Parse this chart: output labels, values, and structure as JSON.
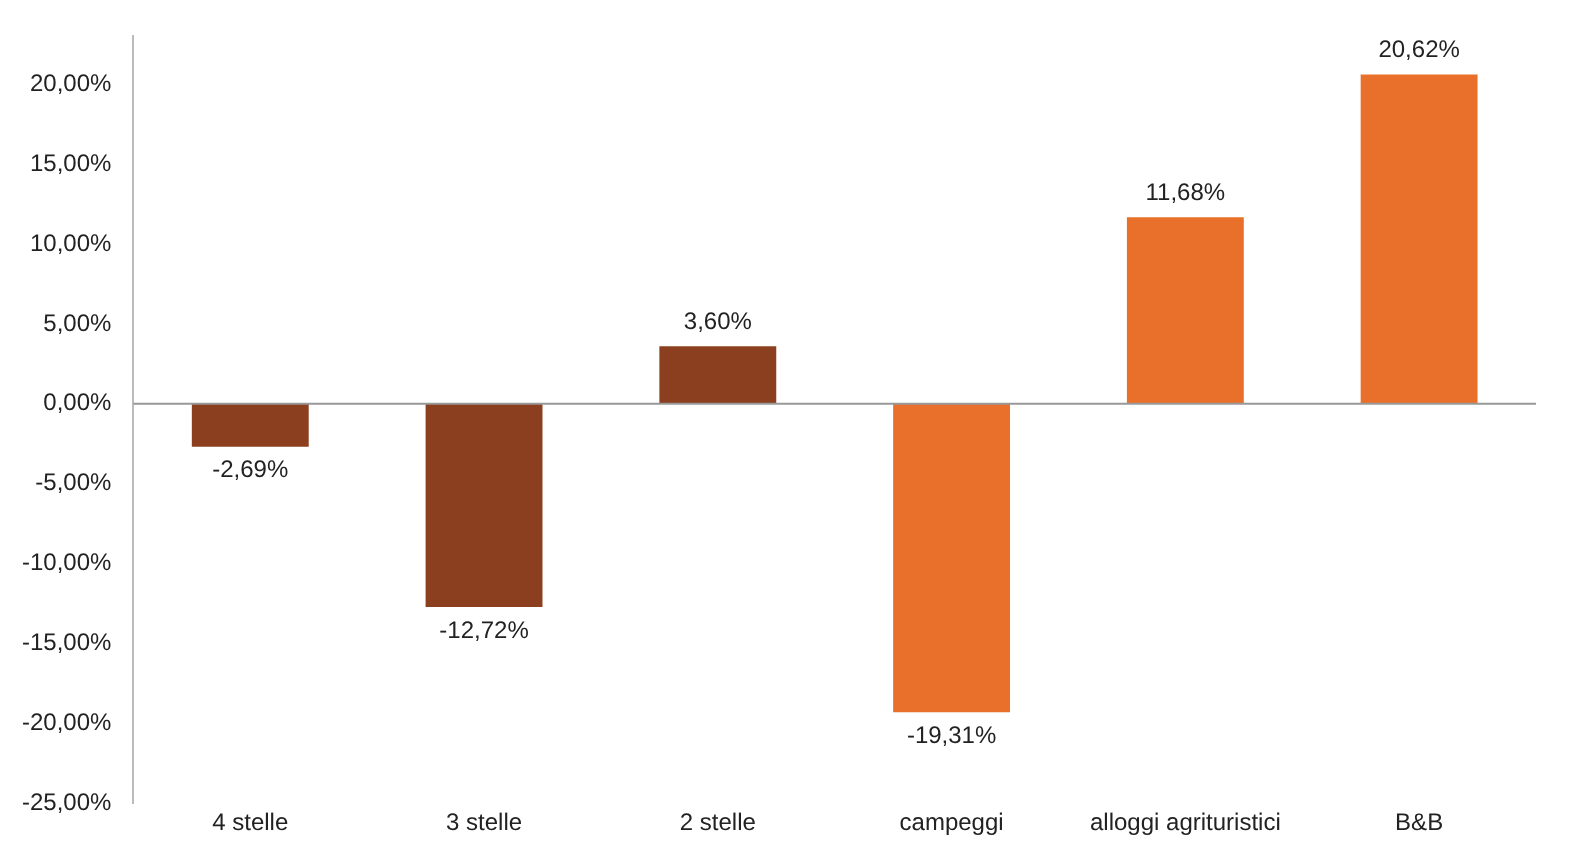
{
  "chart_data": {
    "type": "bar",
    "categories": [
      "4 stelle",
      "3 stelle",
      "2 stelle",
      "campeggi",
      "alloggi agrituristici",
      "B&B"
    ],
    "values": [
      -2.69,
      -12.72,
      3.6,
      -19.31,
      11.68,
      20.62
    ],
    "colors": [
      "#8b3f1f",
      "#8b3f1f",
      "#8b3f1f",
      "#e8702a",
      "#e8702a",
      "#e8702a"
    ],
    "value_labels": [
      "-2,69%",
      "-12,72%",
      "3,60%",
      "-19,31%",
      "11,68%",
      "20,62%"
    ],
    "ylim": [
      -25,
      23
    ],
    "yticks": [
      {
        "value": -25,
        "label": "-25,00%"
      },
      {
        "value": -20,
        "label": "-20,00%"
      },
      {
        "value": -15,
        "label": "-15,00%"
      },
      {
        "value": -10,
        "label": "-10,00%"
      },
      {
        "value": -5,
        "label": "-5,00%"
      },
      {
        "value": 0,
        "label": "0,00%"
      },
      {
        "value": 5,
        "label": "5,00%"
      },
      {
        "value": 10,
        "label": "10,00%"
      },
      {
        "value": 15,
        "label": "15,00%"
      },
      {
        "value": 20,
        "label": "20,00%"
      }
    ],
    "ref_lines": [
      {
        "axis": "y",
        "value": 0,
        "color": "#999999"
      }
    ],
    "grid": false
  }
}
